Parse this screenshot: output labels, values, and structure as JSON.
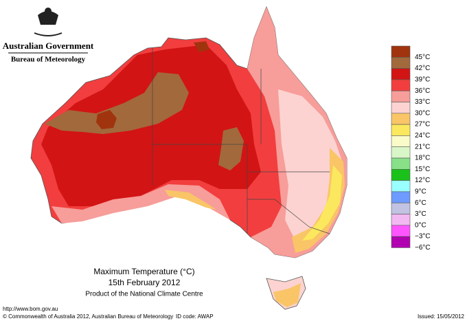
{
  "header": {
    "government": "Australian Government",
    "agency": "Bureau of Meteorology"
  },
  "map": {
    "title": "Maximum Temperature (°C)",
    "date": "15th February 2012",
    "product": "Product of the National Climate Centre"
  },
  "legend": [
    {
      "label": "45°C",
      "color": "#a0340e"
    },
    {
      "label": "42°C",
      "color": "#a2693c"
    },
    {
      "label": "39°C",
      "color": "#d21414"
    },
    {
      "label": "36°C",
      "color": "#f23e3e"
    },
    {
      "label": "33°C",
      "color": "#f79d9a"
    },
    {
      "label": "30°C",
      "color": "#fcd3d0"
    },
    {
      "label": "27°C",
      "color": "#f9c567"
    },
    {
      "label": "24°C",
      "color": "#fbe85e"
    },
    {
      "label": "21°C",
      "color": "#fafbc8"
    },
    {
      "label": "18°C",
      "color": "#d9f6c8"
    },
    {
      "label": "15°C",
      "color": "#88e088"
    },
    {
      "label": "12°C",
      "color": "#1bc11b"
    },
    {
      "label": "9°C",
      "color": "#9affff"
    },
    {
      "label": "6°C",
      "color": "#6d9bff"
    },
    {
      "label": "3°C",
      "color": "#c2c2e2"
    },
    {
      "label": "0°C",
      "color": "#f2b8f2"
    },
    {
      "label": "−3°C",
      "color": "#ff55ff"
    },
    {
      "label": "−6°C",
      "color": "#b000b0"
    }
  ],
  "footer": {
    "url": "http://www.bom.gov.au",
    "copyright": "© Commonwealth of Australia 2012, Australian Bureau of Meteorology",
    "id_code": "ID code: AWAP",
    "issued": "Issued: 15/05/2012"
  }
}
